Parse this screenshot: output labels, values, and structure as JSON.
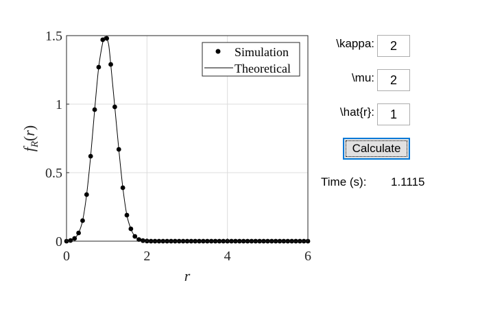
{
  "chart_data": {
    "type": "line",
    "xlabel": "r",
    "ylabel": "f_R(r)",
    "xlim": [
      0,
      6
    ],
    "ylim": [
      0,
      1.5
    ],
    "xticks": [
      "0",
      "2",
      "4",
      "6"
    ],
    "yticks": [
      "0",
      "0.5",
      "1",
      "1.5"
    ],
    "grid": true,
    "legend_position": "top-right",
    "series": [
      {
        "name": "Simulation",
        "style": "markers",
        "x": [
          0.0,
          0.1,
          0.2,
          0.3,
          0.4,
          0.5,
          0.6,
          0.7,
          0.8,
          0.9,
          1.0,
          1.1,
          1.2,
          1.3,
          1.4,
          1.5,
          1.6,
          1.7,
          1.8,
          1.9,
          2.0,
          2.1,
          2.2,
          2.3,
          2.4,
          2.5,
          2.6,
          2.7,
          2.8,
          2.9,
          3.0,
          3.1,
          3.2,
          3.3,
          3.4,
          3.5,
          3.6,
          3.7,
          3.8,
          3.9,
          4.0,
          4.1,
          4.2,
          4.3,
          4.4,
          4.5,
          4.6,
          4.7,
          4.8,
          4.9,
          5.0,
          5.1,
          5.2,
          5.3,
          5.4,
          5.5,
          5.6,
          5.7,
          5.8,
          5.9,
          6.0
        ],
        "y": [
          0.0,
          0.005,
          0.02,
          0.06,
          0.15,
          0.34,
          0.62,
          0.96,
          1.27,
          1.47,
          1.48,
          1.29,
          0.98,
          0.67,
          0.39,
          0.19,
          0.09,
          0.035,
          0.012,
          0.004,
          0.001,
          0.0,
          0.0,
          0.0,
          0.0,
          0.0,
          0.0,
          0.0,
          0.0,
          0.0,
          0.0,
          0.0,
          0.0,
          0.0,
          0.0,
          0.0,
          0.0,
          0.0,
          0.0,
          0.0,
          0.0,
          0.0,
          0.0,
          0.0,
          0.0,
          0.0,
          0.0,
          0.0,
          0.0,
          0.0,
          0.0,
          0.0,
          0.0,
          0.0,
          0.0,
          0.0,
          0.0,
          0.0,
          0.0,
          0.0,
          0.0
        ]
      },
      {
        "name": "Theoretical",
        "style": "line",
        "x": [
          0.0,
          0.1,
          0.2,
          0.3,
          0.4,
          0.5,
          0.6,
          0.7,
          0.8,
          0.9,
          0.95,
          1.0,
          1.05,
          1.1,
          1.2,
          1.3,
          1.4,
          1.5,
          1.6,
          1.7,
          1.8,
          1.9,
          2.0,
          2.2,
          2.5,
          3.0,
          4.0,
          5.0,
          6.0
        ],
        "y": [
          0.0,
          0.005,
          0.02,
          0.06,
          0.15,
          0.34,
          0.62,
          0.96,
          1.27,
          1.45,
          1.49,
          1.48,
          1.43,
          1.29,
          0.98,
          0.67,
          0.39,
          0.19,
          0.09,
          0.035,
          0.012,
          0.004,
          0.001,
          0.0,
          0.0,
          0.0,
          0.0,
          0.0,
          0.0
        ]
      }
    ]
  },
  "controls": {
    "kappa_label": "\\kappa:",
    "kappa_value": "2",
    "mu_label": "\\mu:",
    "mu_value": "2",
    "rhat_label": "\\hat{r}:",
    "rhat_value": "1",
    "calculate_label": "Calculate",
    "time_label": "Time (s):",
    "time_value": "1.1115"
  }
}
